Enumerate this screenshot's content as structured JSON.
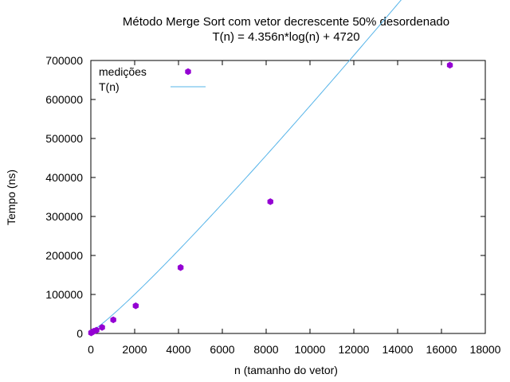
{
  "chart_data": {
    "type": "scatter",
    "title": "Método Merge Sort com vetor decrescente 50% desordenado",
    "subtitle": "T(n) = 4.356n*log(n) + 4720",
    "xlabel": "n (tamanho do vetor)",
    "ylabel": "Tempo (ns)",
    "xlim": [
      0,
      18000
    ],
    "ylim": [
      0,
      700000
    ],
    "xticks": [
      "0",
      "2000",
      "4000",
      "6000",
      "8000",
      "10000",
      "12000",
      "14000",
      "16000",
      "18000"
    ],
    "yticks": [
      "0",
      "100000",
      "200000",
      "300000",
      "400000",
      "500000",
      "600000",
      "700000"
    ],
    "grid": false,
    "legend_position": "top-left",
    "series": [
      {
        "name": "medições",
        "kind": "points",
        "color": "#9400d3",
        "x": [
          16,
          32,
          64,
          128,
          256,
          512,
          1024,
          2048,
          4096,
          8192,
          16384
        ],
        "y": [
          1500,
          2500,
          3500,
          5500,
          8500,
          15500,
          35000,
          71000,
          169000,
          338000,
          688000
        ]
      },
      {
        "name": "T(n)",
        "kind": "line",
        "color": "#56b4e9",
        "formula": "4.356*n*log2(n) + 4720"
      }
    ]
  }
}
